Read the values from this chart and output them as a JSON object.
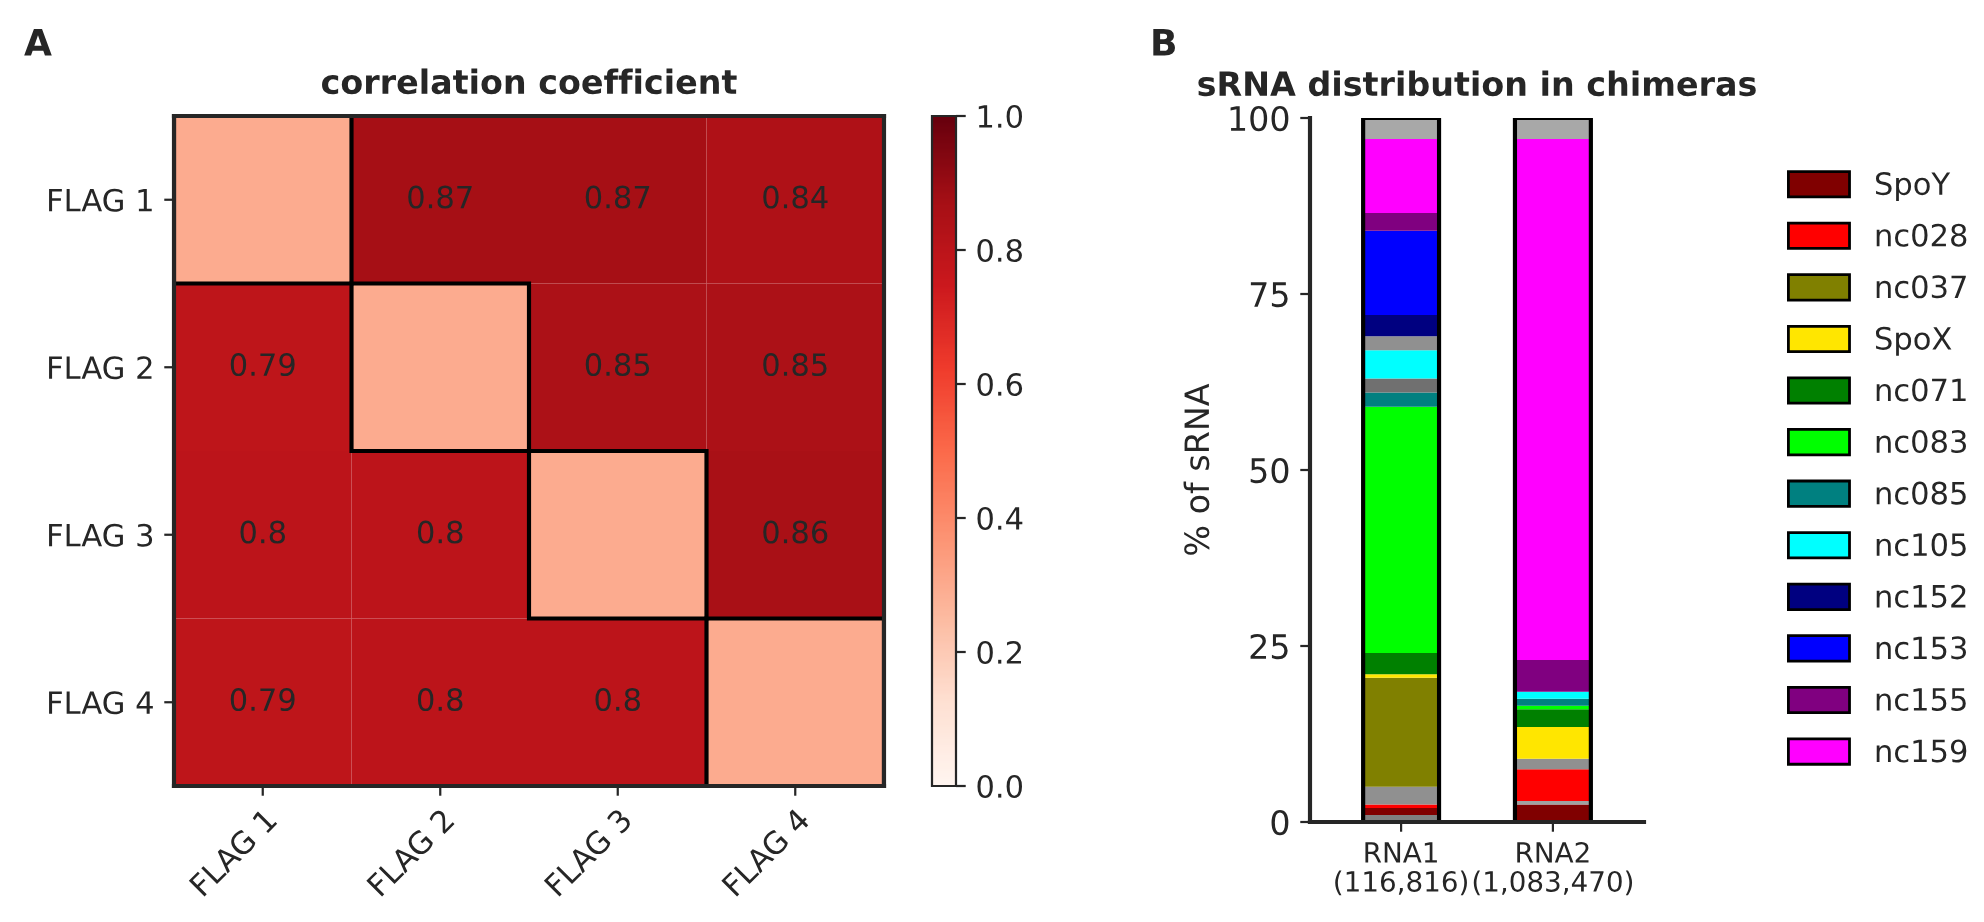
{
  "chart_data": [
    {
      "type": "heatmap",
      "title": "correlation coefficient",
      "annotations": [
        "A"
      ],
      "categories": [
        "FLAG 1",
        "FLAG 2",
        "FLAG 3",
        "FLAG 4"
      ],
      "y_categories": [
        "FLAG 1",
        "FLAG 2",
        "FLAG 3",
        "FLAG 4"
      ],
      "cells": [
        [
          0.3,
          0.87,
          0.87,
          0.84
        ],
        [
          0.79,
          0.3,
          0.85,
          0.85
        ],
        [
          0.8,
          0.8,
          0.3,
          0.86
        ],
        [
          0.79,
          0.8,
          0.8,
          0.3
        ]
      ],
      "cell_labels": [
        [
          null,
          "0.87",
          "0.87",
          "0.84"
        ],
        [
          "0.79",
          null,
          "0.85",
          "0.85"
        ],
        [
          "0.8",
          "0.8",
          null,
          "0.86"
        ],
        [
          "0.79",
          "0.8",
          "0.8",
          null
        ]
      ],
      "clim": [
        0,
        1
      ],
      "cticks": [
        {
          "value": 0,
          "label": "0.0"
        },
        {
          "value": 0.2,
          "label": "0.2"
        },
        {
          "value": 0.4,
          "label": "0.4"
        },
        {
          "value": 0.6,
          "label": "0.6"
        },
        {
          "value": 0.8,
          "label": "0.8"
        },
        {
          "value": 1,
          "label": "1.0"
        }
      ]
    },
    {
      "type": "bar",
      "stacked": true,
      "title": "sRNA distribution in chimeras",
      "annotations": [
        "B"
      ],
      "ylabel": "% of sRNA",
      "categories": [
        "RNA1\n(116,816)",
        "RNA2\n(1,083,470)"
      ],
      "ylim": [
        0,
        100
      ],
      "yticks": [
        0,
        25,
        50,
        75,
        100
      ],
      "legend": "right",
      "grid": false,
      "series": [
        {
          "color": "#808080",
          "values": [
            1,
            0
          ]
        },
        {
          "name": "SpoY",
          "color": "#800000",
          "values": [
            1,
            2.5
          ]
        },
        {
          "color": "#a0a0a0",
          "values": [
            0,
            0.5
          ]
        },
        {
          "name": "nc028",
          "color": "#ff0000",
          "values": [
            0.5,
            4.5
          ]
        },
        {
          "color": "#909090",
          "values": [
            2.5,
            1.5
          ]
        },
        {
          "name": "nc037",
          "color": "#808000",
          "values": [
            15.5,
            0
          ]
        },
        {
          "name": "SpoX",
          "color": "#ffe600",
          "values": [
            0.5,
            4.5
          ]
        },
        {
          "name": "nc071",
          "color": "#008000",
          "values": [
            3,
            2.5
          ]
        },
        {
          "name": "nc083",
          "color": "#00ff00",
          "values": [
            35,
            0.5
          ]
        },
        {
          "name": "nc085",
          "color": "#008080",
          "values": [
            2,
            1
          ]
        },
        {
          "color": "#707070",
          "values": [
            2,
            0
          ]
        },
        {
          "name": "nc105",
          "color": "#00ffff",
          "values": [
            4,
            1
          ]
        },
        {
          "color": "#909090",
          "values": [
            2,
            0
          ]
        },
        {
          "name": "nc152",
          "color": "#000080",
          "values": [
            3,
            0
          ]
        },
        {
          "name": "nc153",
          "color": "#0000ff",
          "values": [
            12,
            0
          ]
        },
        {
          "name": "nc155",
          "color": "#800080",
          "values": [
            2.5,
            4.5
          ]
        },
        {
          "name": "nc159",
          "color": "#ff00ff",
          "values": [
            10.5,
            74
          ]
        },
        {
          "color": "#a8a8a8",
          "values": [
            3,
            3
          ]
        }
      ]
    }
  ]
}
